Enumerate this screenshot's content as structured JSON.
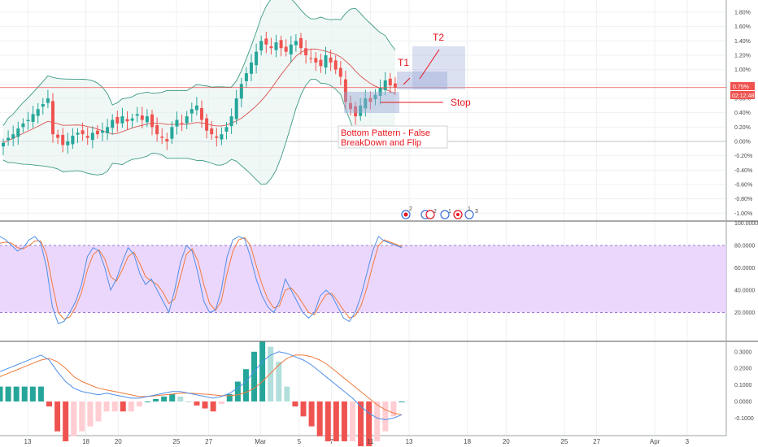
{
  "colors": {
    "up": "#26a69a",
    "down": "#ef5350",
    "band": "#3d9a85",
    "basis": "#d9534f",
    "stoch_k": "#4f8ee8",
    "stoch_d": "#f07a3b",
    "stoch_bg": "#e9d0fb",
    "annot": "#e8141e",
    "zone": "#9aa8d8",
    "hist_up_strong": "#26a69a",
    "hist_up_weak": "#b2dfdb",
    "hist_dn_strong": "#ef5350",
    "hist_dn_weak": "#ffcdd2"
  },
  "price_axis": {
    "ticks": [
      "1.80%",
      "1.60%",
      "1.40%",
      "1.20%",
      "1.00%",
      "0.80%",
      "0.60%",
      "0.40%",
      "0.20%",
      "0.00%",
      "-0.20%",
      "-0.40%",
      "-0.60%",
      "-0.80%",
      "-1.00%"
    ],
    "ticks_value": [
      1.8,
      1.6,
      1.4,
      1.2,
      1.0,
      0.8,
      0.6,
      0.4,
      0.2,
      0.0,
      -0.2,
      -0.4,
      -0.6,
      -0.8,
      -1.0
    ],
    "current_label": "0.75%",
    "current_value": 0.75,
    "timer_label": "02:12:48"
  },
  "stoch_axis": {
    "ticks": [
      "100.0000",
      "80.0000",
      "60.0000",
      "40.0000",
      "20.0000"
    ],
    "ticks_value": [
      100,
      80,
      60,
      40,
      20
    ]
  },
  "macd_axis": {
    "ticks": [
      "0.3000",
      "0.2000",
      "0.1000",
      "0.0000",
      "-0.1000"
    ],
    "ticks_value": [
      0.3,
      0.2,
      0.1,
      0.0,
      -0.1
    ]
  },
  "x_axis": {
    "labels": [
      "13",
      "18",
      "20",
      "25",
      "27",
      "Mar",
      "5",
      "7",
      "11",
      "13",
      "18",
      "20",
      "25",
      "27",
      "Apr",
      "3"
    ],
    "label_slots": [
      4,
      13,
      18,
      27,
      32,
      40,
      46,
      51,
      57,
      63,
      72,
      78,
      87,
      92,
      101,
      106
    ]
  },
  "annotations": {
    "t1": "T1",
    "t2": "T2",
    "stop": "Stop",
    "pattern_line1": "Bottom Pattern - False",
    "pattern_line2": "BreakDown and Flip"
  },
  "event_badges": {
    "b1": "2",
    "b2": "2",
    "b3": "1",
    "b4": "1",
    "b5": "3"
  },
  "chart_data": {
    "type": "candlestick",
    "panes": [
      "price",
      "stochastic",
      "macd"
    ],
    "price": {
      "unit": "%",
      "ylim": [
        -1.1,
        1.9
      ],
      "close": [
        -0.02,
        0.05,
        0.1,
        0.18,
        0.25,
        0.3,
        0.38,
        0.45,
        0.52,
        0.6,
        0.1,
        0.05,
        -0.05,
        0.0,
        0.08,
        0.12,
        0.1,
        0.05,
        0.12,
        0.1,
        0.15,
        0.2,
        0.3,
        0.25,
        0.35,
        0.28,
        0.32,
        0.38,
        0.3,
        0.35,
        0.2,
        0.1,
        0.05,
        0.0,
        0.2,
        0.3,
        0.25,
        0.35,
        0.45,
        0.5,
        0.3,
        0.15,
        0.1,
        0.05,
        0.1,
        0.2,
        0.35,
        0.6,
        0.8,
        0.95,
        1.1,
        1.25,
        1.4,
        1.35,
        1.3,
        1.38,
        1.3,
        1.25,
        1.35,
        1.4,
        1.3,
        1.2,
        1.15,
        1.1,
        1.05,
        1.2,
        1.1,
        1.0,
        0.9,
        0.55,
        0.45,
        0.35,
        0.5,
        0.6,
        0.55,
        0.65,
        0.75,
        0.85,
        0.78,
        0.75
      ],
      "bb_upper_peak": 1.8,
      "bb_lower_min": -0.3,
      "current": 0.75
    },
    "stochastic": {
      "ylim": [
        0,
        100
      ],
      "overbought": 80,
      "oversold": 20,
      "k": [
        88,
        85,
        80,
        75,
        78,
        85,
        88,
        82,
        60,
        25,
        10,
        12,
        20,
        30,
        45,
        70,
        78,
        75,
        60,
        40,
        50,
        65,
        78,
        72,
        55,
        45,
        50,
        40,
        30,
        20,
        40,
        65,
        80,
        75,
        55,
        30,
        20,
        22,
        40,
        70,
        85,
        88,
        86,
        70,
        50,
        35,
        25,
        20,
        30,
        50,
        40,
        30,
        20,
        15,
        20,
        35,
        40,
        35,
        25,
        15,
        12,
        20,
        35,
        55,
        75,
        88,
        84,
        82,
        80,
        78
      ],
      "d": [
        82,
        83,
        82,
        78,
        77,
        80,
        84,
        84,
        72,
        45,
        20,
        14,
        16,
        25,
        38,
        58,
        72,
        76,
        68,
        52,
        48,
        58,
        70,
        74,
        64,
        52,
        48,
        45,
        38,
        28,
        32,
        52,
        72,
        77,
        66,
        45,
        28,
        22,
        30,
        55,
        75,
        85,
        87,
        80,
        62,
        45,
        32,
        24,
        26,
        40,
        42,
        36,
        28,
        20,
        18,
        28,
        36,
        37,
        30,
        22,
        15,
        17,
        26,
        42,
        62,
        80,
        85,
        83,
        81,
        79
      ]
    },
    "macd": {
      "ylim": [
        -0.13,
        0.34
      ],
      "macd": [
        0.18,
        0.2,
        0.22,
        0.24,
        0.26,
        0.28,
        0.25,
        0.18,
        0.12,
        0.08,
        0.06,
        0.05,
        0.04,
        0.05,
        0.04,
        0.03,
        0.02,
        0.02,
        0.03,
        0.04,
        0.05,
        0.06,
        0.06,
        0.05,
        0.04,
        0.03,
        0.02,
        0.03,
        0.05,
        0.08,
        0.12,
        0.18,
        0.24,
        0.28,
        0.3,
        0.29,
        0.27,
        0.25,
        0.22,
        0.18,
        0.14,
        0.1,
        0.06,
        0.02,
        -0.03,
        -0.07,
        -0.1,
        -0.11,
        -0.1,
        -0.08
      ],
      "signal": [
        0.15,
        0.17,
        0.19,
        0.21,
        0.23,
        0.25,
        0.26,
        0.24,
        0.2,
        0.15,
        0.12,
        0.1,
        0.08,
        0.07,
        0.06,
        0.05,
        0.04,
        0.03,
        0.03,
        0.035,
        0.04,
        0.045,
        0.05,
        0.05,
        0.048,
        0.044,
        0.04,
        0.035,
        0.035,
        0.04,
        0.055,
        0.08,
        0.12,
        0.17,
        0.22,
        0.26,
        0.28,
        0.28,
        0.27,
        0.25,
        0.22,
        0.18,
        0.14,
        0.1,
        0.06,
        0.02,
        -0.02,
        -0.05,
        -0.07,
        -0.08
      ]
    }
  }
}
